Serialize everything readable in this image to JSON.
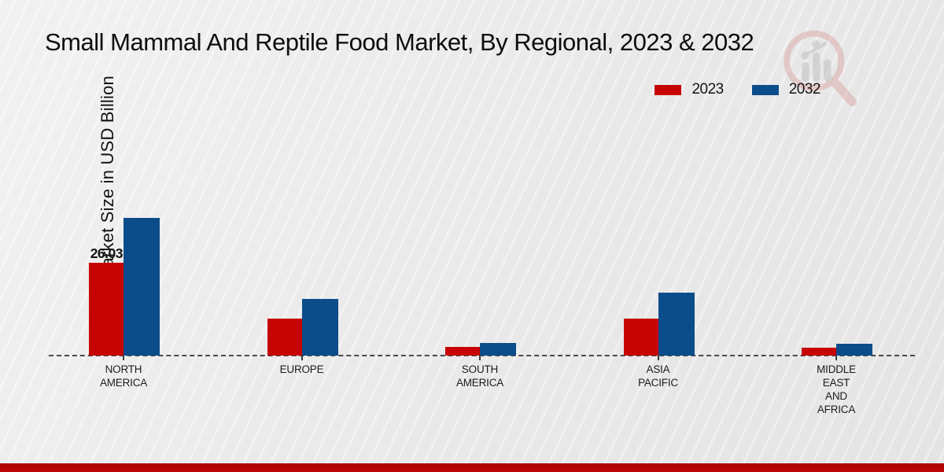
{
  "title": "Small Mammal And Reptile Food Market, By Regional, 2023 & 2032",
  "ylabel": "Market Size in USD Billion",
  "legend": {
    "items": [
      {
        "label": "2023",
        "color": "#c70404"
      },
      {
        "label": "2032",
        "color": "#0b4d8a"
      }
    ]
  },
  "watermark": {
    "name": "magnifier-bar-chart-logo"
  },
  "footer": {
    "color": "#b30505"
  },
  "chart_data": {
    "type": "bar",
    "title": "Small Mammal And Reptile Food Market, By Regional, 2023 & 2032",
    "xlabel": "",
    "ylabel": "Market Size in USD Billion",
    "categories": [
      "NORTH\nAMERICA",
      "EUROPE",
      "SOUTH\nAMERICA",
      "ASIA\nPACIFIC",
      "MIDDLE\nEAST\nAND\nAFRICA"
    ],
    "series": [
      {
        "name": "2023",
        "color": "#c70404",
        "values": [
          26.03,
          10.4,
          2.4,
          10.4,
          2.2
        ]
      },
      {
        "name": "2032",
        "color": "#0b4d8a",
        "values": [
          38.6,
          15.9,
          3.5,
          17.6,
          3.3
        ]
      }
    ],
    "data_labels": [
      {
        "series": "2023",
        "category_index": 0,
        "text": "26.03"
      }
    ],
    "ylim": [
      0,
      40
    ],
    "grid": false,
    "baseline_style": "dashed",
    "legend_position": "top-right"
  }
}
